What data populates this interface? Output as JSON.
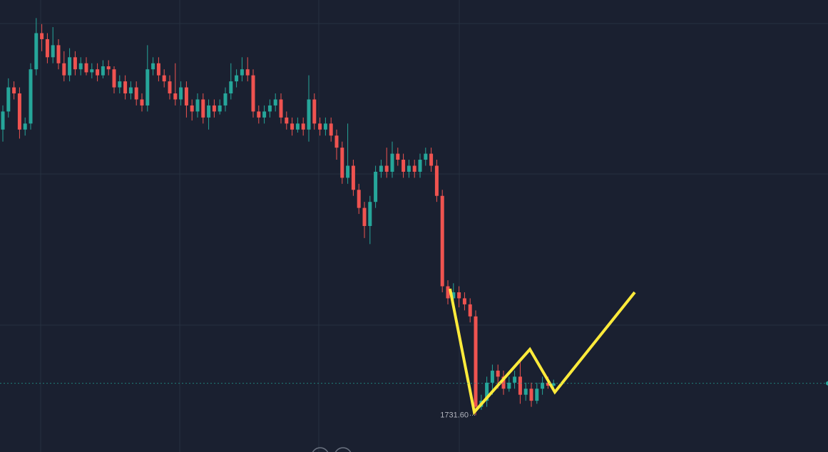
{
  "chart_data": {
    "type": "candlestick",
    "open": [
      1779,
      1782,
      1786,
      1785,
      1779,
      1780,
      1789,
      1795,
      1794,
      1791,
      1793,
      1790,
      1788,
      1791,
      1789,
      1790,
      1788.5,
      1789,
      1788,
      1789.5,
      1789,
      1786,
      1787,
      1785,
      1786,
      1784,
      1783,
      1789,
      1790,
      1788,
      1787,
      1785,
      1784,
      1786,
      1783,
      1782,
      1784,
      1781,
      1783,
      1782,
      1783,
      1785,
      1787,
      1788,
      1789,
      1788,
      1782,
      1781,
      1782,
      1783,
      1784,
      1781,
      1780,
      1779,
      1780,
      1779,
      1784,
      1780,
      1779,
      1780,
      1778,
      1776,
      1771,
      1773,
      1769,
      1766,
      1763,
      1767,
      1772,
      1773,
      1772,
      1775,
      1774,
      1772,
      1773,
      1772,
      1774,
      1775,
      1773,
      1768,
      1753,
      1751,
      1752,
      1751,
      1750,
      1748,
      1733,
      1734,
      1737,
      1739,
      1738,
      1736,
      1737,
      1738,
      1735,
      1736,
      1734,
      1736,
      1737,
      1736.5
    ],
    "high": [
      1783,
      1787.5,
      1787,
      1786,
      1781,
      1790,
      1797.5,
      1796.5,
      1795,
      1796,
      1794,
      1792,
      1792.5,
      1792,
      1791,
      1791,
      1790,
      1790,
      1790.5,
      1790.5,
      1789.5,
      1788,
      1788,
      1787,
      1787,
      1785,
      1793,
      1791,
      1791,
      1789,
      1788,
      1790,
      1787,
      1787,
      1784,
      1785,
      1785,
      1784,
      1784,
      1784,
      1786,
      1790,
      1789,
      1791,
      1791,
      1789,
      1783,
      1783,
      1784,
      1785,
      1785,
      1782,
      1781,
      1781,
      1781,
      1788,
      1785,
      1781,
      1781,
      1781,
      1779,
      1777,
      1780,
      1774,
      1770,
      1767,
      1768,
      1773,
      1774,
      1776,
      1777,
      1776,
      1775,
      1774,
      1774,
      1775,
      1776,
      1776,
      1774,
      1769,
      1754,
      1753.5,
      1753,
      1752,
      1751,
      1749,
      1735,
      1738,
      1740,
      1740,
      1739,
      1738,
      1739,
      1741,
      1737,
      1737,
      1737,
      1738,
      1738,
      1737.5
    ],
    "low": [
      1777,
      1781,
      1784,
      1777.5,
      1778,
      1779,
      1788,
      1792,
      1790,
      1790,
      1789,
      1787,
      1787,
      1788,
      1788,
      1788,
      1787.5,
      1787,
      1787.5,
      1788,
      1785,
      1785,
      1784,
      1784,
      1783,
      1782,
      1782,
      1788,
      1787,
      1786,
      1784,
      1783,
      1783,
      1781,
      1780.5,
      1781,
      1780,
      1779,
      1781,
      1781.5,
      1782,
      1784,
      1786,
      1787,
      1787,
      1781,
      1780,
      1780,
      1781,
      1782,
      1780,
      1779,
      1778,
      1778.5,
      1778,
      1777,
      1779,
      1778,
      1778,
      1777,
      1774,
      1770,
      1770,
      1768,
      1765,
      1761,
      1760,
      1766,
      1771,
      1771,
      1771,
      1773,
      1771,
      1771,
      1771,
      1771,
      1773,
      1772,
      1767,
      1752,
      1750,
      1750,
      1749.5,
      1749,
      1747,
      1731.6,
      1732.5,
      1733,
      1735,
      1736,
      1735,
      1735.5,
      1736,
      1733.5,
      1734,
      1733,
      1733.5,
      1735,
      1736,
      1736
    ],
    "close": [
      1782,
      1786,
      1785,
      1779,
      1780,
      1789,
      1795,
      1794,
      1791,
      1793,
      1790,
      1788,
      1791,
      1789,
      1790,
      1788.5,
      1789,
      1788,
      1789.5,
      1789,
      1786,
      1787,
      1785,
      1786,
      1784,
      1783,
      1789,
      1790,
      1788,
      1787,
      1785,
      1784,
      1786,
      1783,
      1782,
      1784,
      1781,
      1783,
      1782,
      1783,
      1785,
      1787,
      1788,
      1789,
      1788,
      1782,
      1781,
      1782,
      1783,
      1784,
      1781,
      1780,
      1779,
      1780,
      1779,
      1784,
      1780,
      1779,
      1780,
      1778,
      1776,
      1771,
      1773,
      1769,
      1766,
      1763,
      1767,
      1772,
      1773,
      1772,
      1775,
      1774,
      1772,
      1773,
      1772,
      1774,
      1775,
      1773,
      1768,
      1753,
      1751,
      1752,
      1751,
      1750,
      1748,
      1733,
      1734,
      1737,
      1739,
      1738,
      1736,
      1737,
      1738,
      1735,
      1736,
      1734,
      1736,
      1737,
      1736.5,
      1736.9
    ],
    "ylim": [
      1725.5,
      1800.5
    ],
    "up_color": "#26a69a",
    "down_color": "#ef5350",
    "annotations": [
      {
        "value": 1731.6,
        "label": "1731.60"
      }
    ]
  }
}
